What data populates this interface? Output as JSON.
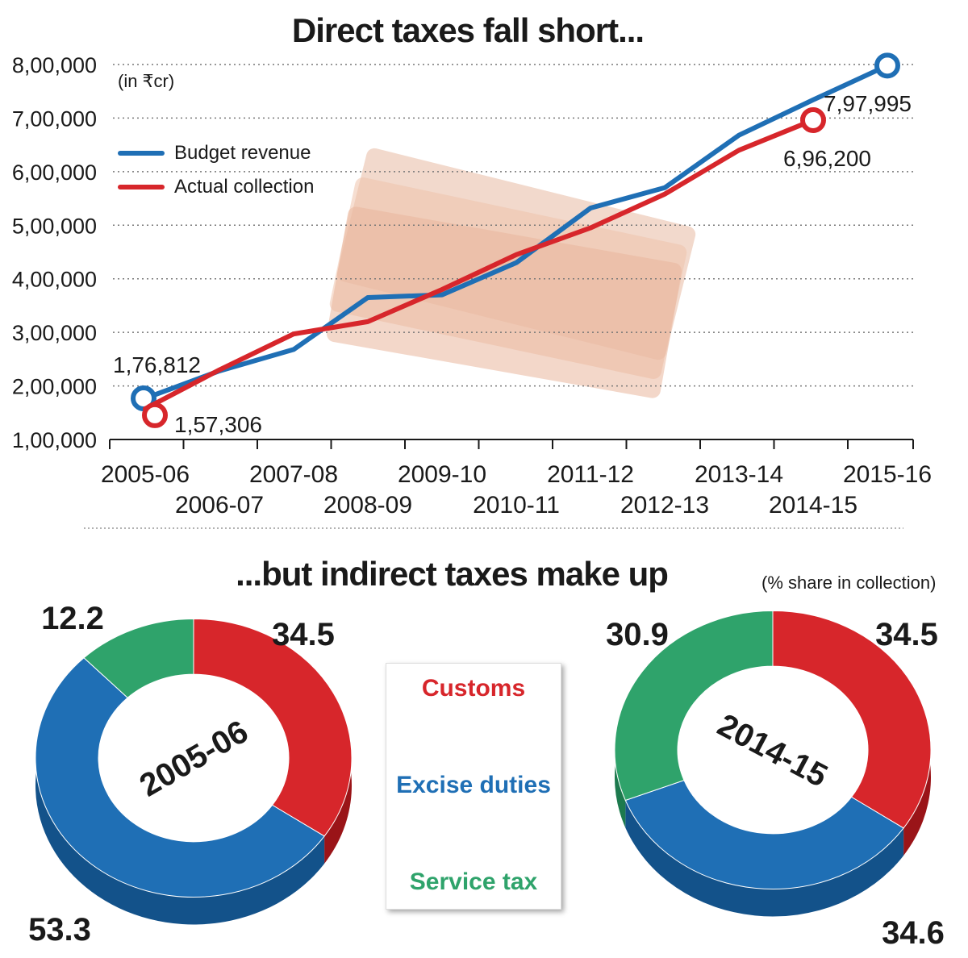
{
  "header": {
    "title": "Direct taxes fall short...",
    "unit_note": "(in ₹cr)"
  },
  "line_legend": [
    {
      "label": "Budget revenue",
      "color": "#1f6fb5"
    },
    {
      "label": "Actual collection",
      "color": "#d7262b"
    }
  ],
  "section2": {
    "title": "...but indirect taxes make up",
    "note": "(% share in collection)"
  },
  "donut_key": [
    {
      "label": "Customs",
      "color": "#d7262b"
    },
    {
      "label": "Excise duties",
      "color": "#1f6fb5"
    },
    {
      "label": "Service tax",
      "color": "#2fa36b"
    }
  ],
  "chart_data": [
    {
      "type": "line",
      "title": "Direct taxes fall short...",
      "ylabel": "(in ₹cr)",
      "x": [
        "2005-06",
        "2006-07",
        "2007-08",
        "2008-09",
        "2009-10",
        "2010-11",
        "2011-12",
        "2012-13",
        "2013-14",
        "2014-15",
        "2015-16"
      ],
      "ylim": [
        100000,
        800000
      ],
      "yticks": [
        "1,00,000",
        "2,00,000",
        "3,00,000",
        "4,00,000",
        "5,00,000",
        "6,00,000",
        "7,00,000",
        "8,00,000"
      ],
      "grid": "horizontal dotted",
      "legend": "top-left",
      "series": [
        {
          "name": "Budget revenue",
          "color": "#1f6fb5",
          "values": [
            176812,
            228000,
            268000,
            365000,
            370000,
            430000,
            532000,
            570000,
            668000,
            734000,
            797995
          ]
        },
        {
          "name": "Actual collection",
          "color": "#d7262b",
          "values": [
            157306,
            230000,
            297000,
            320000,
            380000,
            445000,
            495000,
            558000,
            640000,
            696200,
            null
          ]
        }
      ],
      "annotations": [
        {
          "text": "1,76,812",
          "x": "2005-06",
          "series": "Budget revenue"
        },
        {
          "text": "1,57,306",
          "x": "2005-06",
          "series": "Actual collection"
        },
        {
          "text": "7,97,995",
          "x": "2015-16",
          "series": "Budget revenue"
        },
        {
          "text": "6,96,200",
          "x": "2014-15",
          "series": "Actual collection"
        }
      ]
    },
    {
      "type": "pie",
      "title": "2005-06",
      "labels": [
        "Customs",
        "Excise duties",
        "Service tax"
      ],
      "values": [
        34.5,
        53.3,
        12.2
      ],
      "colors": [
        "#d7262b",
        "#1f6fb5",
        "#2fa36b"
      ]
    },
    {
      "type": "pie",
      "title": "2014-15",
      "labels": [
        "Customs",
        "Excise duties",
        "Service tax"
      ],
      "values": [
        34.5,
        34.6,
        30.9
      ],
      "colors": [
        "#d7262b",
        "#1f6fb5",
        "#2fa36b"
      ]
    }
  ]
}
